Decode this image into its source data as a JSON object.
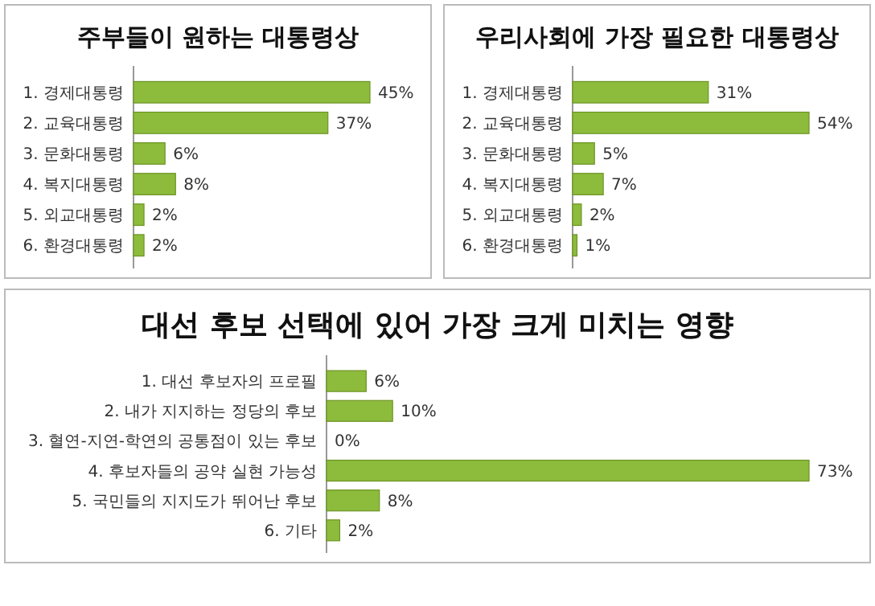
{
  "chart_data": [
    {
      "type": "bar",
      "orientation": "horizontal",
      "title": "주부들이 원하는 대통령상",
      "categories": [
        "1. 경제대통령",
        "2. 교육대통령",
        "3. 문화대통령",
        "4. 복지대통령",
        "5. 외교대통령",
        "6. 환경대통령"
      ],
      "values": [
        45,
        37,
        6,
        8,
        2,
        2
      ],
      "value_labels": [
        "45%",
        "37%",
        "6%",
        "8%",
        "2%",
        "2%"
      ],
      "color": "#8dbb3c"
    },
    {
      "type": "bar",
      "orientation": "horizontal",
      "title": "우리사회에 가장 필요한 대통령상",
      "categories": [
        "1. 경제대통령",
        "2. 교육대통령",
        "3. 문화대통령",
        "4. 복지대통령",
        "5. 외교대통령",
        "6. 환경대통령"
      ],
      "values": [
        31,
        54,
        5,
        7,
        2,
        1
      ],
      "value_labels": [
        "31%",
        "54%",
        "5%",
        "7%",
        "2%",
        "1%"
      ],
      "color": "#8dbb3c"
    },
    {
      "type": "bar",
      "orientation": "horizontal",
      "title": "대선 후보 선택에 있어 가장 크게 미치는 영향",
      "categories": [
        "1. 대선 후보자의 프로필",
        "2. 내가 지지하는 정당의 후보",
        "3. 혈연-지연-학연의 공통점이 있는 후보",
        "4. 후보자들의 공약 실현 가능성",
        "5. 국민들의 지지도가 뛰어난 후보",
        "6. 기타"
      ],
      "values": [
        6,
        10,
        0,
        73,
        8,
        2
      ],
      "value_labels": [
        "6%",
        "10%",
        "0%",
        "73%",
        "8%",
        "2%"
      ],
      "color": "#8dbb3c"
    }
  ]
}
